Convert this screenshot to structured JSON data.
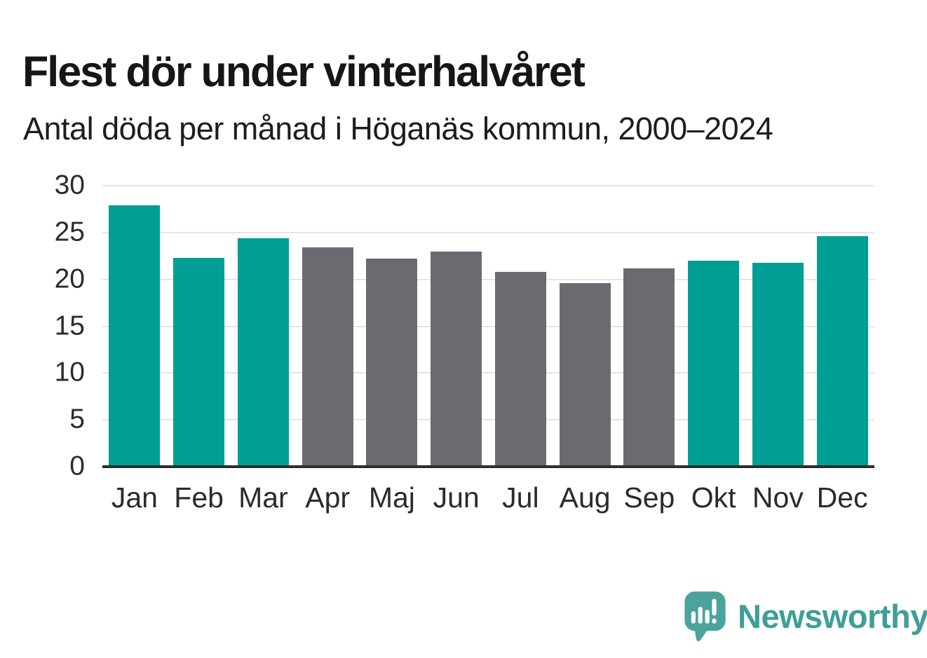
{
  "page": {
    "title": "Flest dör under vinterhalvåret",
    "subtitle": "Antal döda per månad i Höganäs kommun, 2000–2024"
  },
  "colors": {
    "teal_bar": "#009e94",
    "gray_bar": "#6c6a70",
    "gridline": "#e4e4e4",
    "axis_line": "#2d2d2d",
    "title_text": "#161616",
    "tick_text": "#2b2b2b",
    "logo_bubble": "#4ba39d",
    "logo_text": "#3f9e98"
  },
  "chart_data": {
    "type": "bar",
    "title": "Flest dör under vinterhalvåret",
    "subtitle": "Antal döda per månad i Höganäs kommun, 2000–2024",
    "categories": [
      "Jan",
      "Feb",
      "Mar",
      "Apr",
      "Maj",
      "Jun",
      "Jul",
      "Aug",
      "Sep",
      "Okt",
      "Nov",
      "Dec"
    ],
    "values": [
      27.9,
      22.3,
      24.4,
      23.4,
      22.2,
      23.0,
      20.8,
      19.6,
      21.2,
      22.0,
      21.8,
      24.6
    ],
    "bar_colors": [
      "teal",
      "teal",
      "teal",
      "gray",
      "gray",
      "gray",
      "gray",
      "gray",
      "gray",
      "teal",
      "teal",
      "teal"
    ],
    "xlabel": "",
    "ylabel": "",
    "ylim": [
      0,
      30
    ],
    "yticks": [
      0,
      5,
      10,
      15,
      20,
      25,
      30
    ],
    "grid": "horizontal-only",
    "legend": "none"
  },
  "footer": {
    "brand": "Newsworthy",
    "logo_icon": "newsworthy-speech-bubble-barchart-icon"
  }
}
